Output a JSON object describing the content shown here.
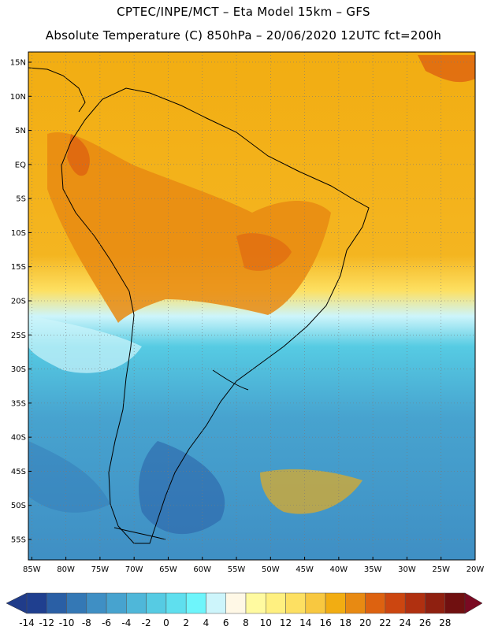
{
  "header": {
    "line1": "CPTEC/INPE/MCT –  Eta Model 15km – GFS",
    "line2": "Absolute Temperature (C) 850hPa – 20/06/2020 12UTC fct=200h"
  },
  "map": {
    "lat_ticks": [
      "15N",
      "10N",
      "5N",
      "EQ",
      "5S",
      "10S",
      "15S",
      "20S",
      "25S",
      "30S",
      "35S",
      "40S",
      "45S",
      "50S",
      "55S"
    ],
    "lon_ticks": [
      "85W",
      "80W",
      "75W",
      "70W",
      "65W",
      "60W",
      "55W",
      "50W",
      "45W",
      "40W",
      "35W",
      "30W",
      "25W",
      "20W"
    ],
    "lat_range": [
      -58,
      16.5
    ],
    "lon_range": [
      -85.5,
      -20
    ],
    "grid": true,
    "gridline_style": "dotted"
  },
  "colorbar": {
    "labels": [
      "-14",
      "-12",
      "-10",
      "-8",
      "-6",
      "-4",
      "-2",
      "0",
      "2",
      "4",
      "6",
      "8",
      "10",
      "12",
      "14",
      "16",
      "18",
      "20",
      "22",
      "24",
      "26",
      "28"
    ],
    "colors": [
      "#1f3f8f",
      "#2a5fa5",
      "#3478b5",
      "#3f8fc4",
      "#47a3cf",
      "#4fb7d9",
      "#56cbe3",
      "#5fdfee",
      "#6ef5fb",
      "#cdf5fb",
      "#fff8e6",
      "#fffaa0",
      "#fff080",
      "#fde062",
      "#f8c840",
      "#f2ad12",
      "#e88a12",
      "#dd6210",
      "#cc4610",
      "#b03010",
      "#8f2010",
      "#701010"
    ],
    "min_arrow_color": "#203c8a",
    "max_arrow_color": "#7a0a22"
  }
}
